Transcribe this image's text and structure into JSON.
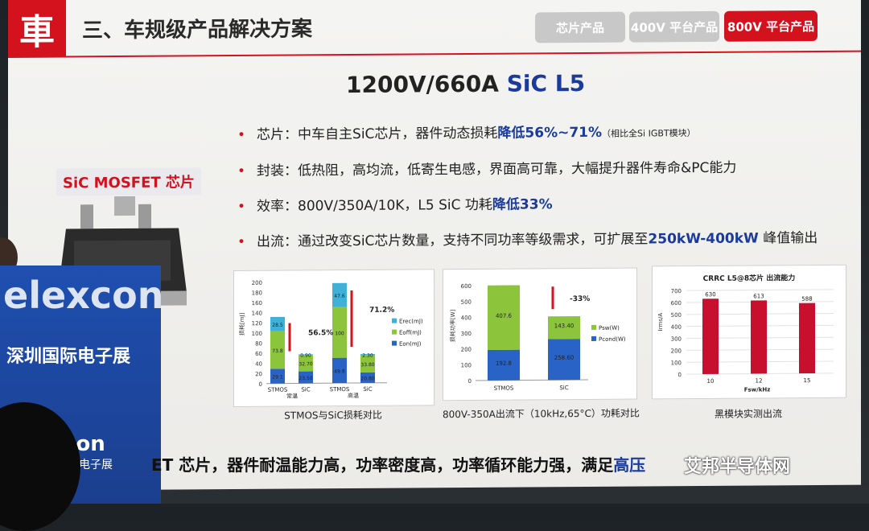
{
  "header": {
    "logo_glyph": "車",
    "title": "三、车规级产品解决方案",
    "tabs": [
      {
        "label": "芯片产品",
        "active": false
      },
      {
        "label": "400V 平台产品",
        "active": false
      },
      {
        "label": "800V 平台产品",
        "active": true
      }
    ]
  },
  "headline": {
    "part1": "1200V/660A ",
    "part2": "SiC L5"
  },
  "bullets": [
    {
      "pre": "芯片：中车自主SiC芯片，器件动态损耗",
      "hl": "降低56%~71%",
      "post": "",
      "small": "（相比全Si IGBT模块）"
    },
    {
      "pre": "封装：低热阻，高均流，低寄生电感，界面高可靠，大幅提升器件寿命&PC能力",
      "hl": "",
      "post": "",
      "small": ""
    },
    {
      "pre": "效率：800V/350A/10K，L5 SiC 功耗",
      "hl": "降低33%",
      "post": "",
      "small": ""
    },
    {
      "pre": "出流：通过改变SiC芯片数量，支持不同功率等级需求，可扩展至",
      "hl": "250kW-400kW",
      "post": " 峰值输出",
      "small": ""
    }
  ],
  "chip_label": "SiC MOSFET 芯片",
  "charts": {
    "loss_compare": {
      "caption": "STMOS与SiC损耗对比",
      "ylabel": "损耗[mJ]",
      "yticks": [
        "0",
        "20",
        "40",
        "60",
        "80",
        "100",
        "120",
        "140",
        "160",
        "180",
        "200"
      ],
      "xlabels": [
        "STMOS",
        "SiC",
        "STMOS",
        "SiC"
      ],
      "group_labels": [
        "常温",
        "高温"
      ],
      "legend": [
        "Erec(mJ)",
        "Eoff(mJ)",
        "Eon(mJ)"
      ],
      "reductions": [
        "56.5%",
        "71.2%"
      ],
      "bar_labels": [
        [
          "29.1",
          "73.8",
          "28.5"
        ],
        [
          "23.50",
          "32.70",
          "0.90"
        ],
        [
          "49.8",
          "100",
          "47.6"
        ],
        [
          "20.80",
          "33.80",
          "2.30"
        ]
      ]
    },
    "power_loss": {
      "caption": "800V-350A出流下（10kHz,65°C）功耗对比",
      "ylabel": "损耗功率[W]",
      "yticks": [
        "0",
        "100",
        "200",
        "300",
        "400",
        "500",
        "600"
      ],
      "xlabels": [
        "STMOS",
        "SiC"
      ],
      "legend": [
        "Psw(W)",
        "Pcond(W)"
      ],
      "reduction": "-33%",
      "bar_labels": [
        [
          "192.8",
          "407.6"
        ],
        [
          "258.60",
          "143.40"
        ]
      ]
    },
    "output_capacity": {
      "title": "CRRC L5@8芯片 出流能力",
      "caption": "黑模块实测出流",
      "ylabel": "Irms/A",
      "xlabel": "Fsw/kHz",
      "yticks": [
        "0",
        "100",
        "200",
        "300",
        "400",
        "500",
        "600",
        "700"
      ],
      "categories": [
        "10",
        "12",
        "15"
      ],
      "values": [
        "630",
        "613",
        "588"
      ]
    }
  },
  "chart_data": [
    {
      "type": "bar",
      "title": "",
      "ylabel": "损耗[mJ]",
      "ylim": [
        0,
        200
      ],
      "categories": [
        "STMOS 常温",
        "SiC 常温",
        "STMOS 高温",
        "SiC 高温"
      ],
      "series": [
        {
          "name": "Eon(mJ)",
          "values": [
            29.1,
            23.5,
            49.8,
            20.8
          ]
        },
        {
          "name": "Eoff(mJ)",
          "values": [
            73.8,
            32.7,
            100,
            33.8
          ]
        },
        {
          "name": "Erec(mJ)",
          "values": [
            28.5,
            0.9,
            47.6,
            2.3
          ]
        }
      ]
    },
    {
      "type": "bar",
      "title": "",
      "ylabel": "损耗功率[W]",
      "ylim": [
        0,
        600
      ],
      "categories": [
        "STMOS",
        "SiC"
      ],
      "series": [
        {
          "name": "Pcond(W)",
          "values": [
            192.8,
            258.6
          ]
        },
        {
          "name": "Psw(W)",
          "values": [
            407.6,
            143.4
          ]
        }
      ]
    },
    {
      "type": "bar",
      "title": "CRRC L5@8芯片 出流能力",
      "xlabel": "Fsw/kHz",
      "ylabel": "Irms/A",
      "ylim": [
        0,
        700
      ],
      "categories": [
        "10",
        "12",
        "15"
      ],
      "values": [
        630,
        613,
        588
      ]
    }
  ],
  "expo": {
    "word": "elexcon",
    "sub": "深圳国际电子展",
    "word2": "elexcon",
    "sub2": "国际电子展"
  },
  "bottom": {
    "pre": "ET 芯片，器件耐温能力高，功率密度高，功率循环能力强，满足",
    "hl": "高压"
  },
  "watermark": "艾邦半导体网",
  "colors": {
    "brand_red": "#d4121e",
    "highlight_blue": "#1a3a9c",
    "bar_green": "#8cc43c",
    "bar_blue": "#2a63c6",
    "bar_teal": "#2aa3c9"
  }
}
